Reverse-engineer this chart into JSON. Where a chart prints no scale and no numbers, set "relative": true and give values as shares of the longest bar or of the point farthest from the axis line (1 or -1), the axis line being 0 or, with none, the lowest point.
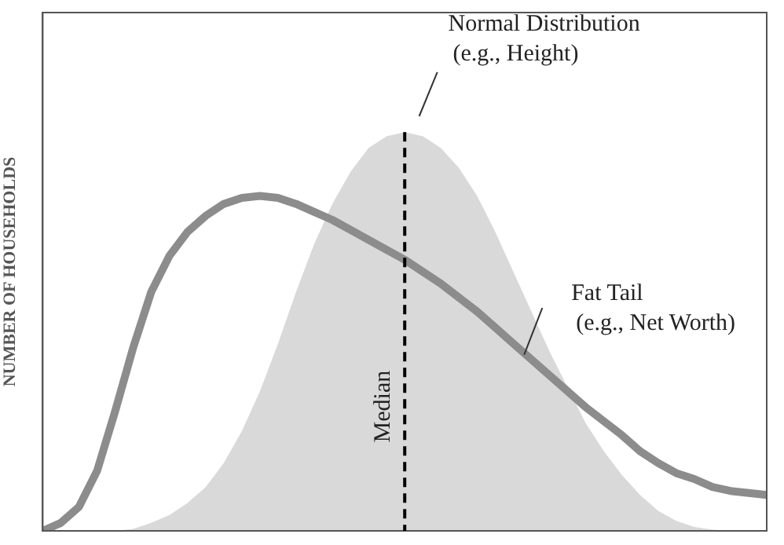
{
  "chart_data": {
    "type": "line",
    "relative": true,
    "ylabel": "NUMBER OF HOUSEHOLDS",
    "categories": [
      null,
      null,
      null,
      null,
      null,
      null,
      null,
      null,
      null,
      null,
      null,
      null,
      null,
      null,
      null,
      null,
      null,
      null,
      null,
      null,
      null,
      null,
      null,
      null,
      null,
      null,
      null,
      null,
      null,
      null,
      null,
      null,
      null,
      null,
      null,
      null,
      null,
      null,
      null,
      null,
      null
    ],
    "legend": false,
    "marker": "none",
    "series": [
      {
        "type": "area",
        "color": "#d9d9d9",
        "values": [
          0,
          0,
          0,
          0,
          0,
          0.005,
          0.02,
          0.04,
          0.07,
          0.11,
          0.17,
          0.25,
          0.35,
          0.47,
          0.6,
          0.72,
          0.82,
          0.9,
          0.96,
          0.99,
          1,
          0.99,
          0.96,
          0.91,
          0.84,
          0.75,
          0.65,
          0.55,
          0.45,
          0.36,
          0.27,
          0.2,
          0.14,
          0.09,
          0.05,
          0.025,
          0.01,
          0.003,
          0,
          0,
          0
        ]
      },
      {
        "color": "#8c8c8c",
        "values": [
          0,
          0.02,
          0.06,
          0.15,
          0.3,
          0.46,
          0.6,
          0.69,
          0.75,
          0.79,
          0.82,
          0.835,
          0.84,
          0.835,
          0.82,
          0.8,
          0.78,
          0.755,
          0.73,
          0.705,
          0.68,
          0.65,
          0.62,
          0.585,
          0.55,
          0.51,
          0.47,
          0.43,
          0.39,
          0.35,
          0.31,
          0.275,
          0.24,
          0.2,
          0.17,
          0.145,
          0.13,
          0.11,
          0.1,
          0.095,
          0.09
        ]
      }
    ],
    "ref_lines": [
      {
        "axis": "x",
        "label": "Median",
        "color": "#000000",
        "line_style": "dashed"
      }
    ],
    "annotations": [
      "Normal Distribution\n(e.g., Height)",
      "Fat Tail\n(e.g., Net Worth)"
    ]
  }
}
